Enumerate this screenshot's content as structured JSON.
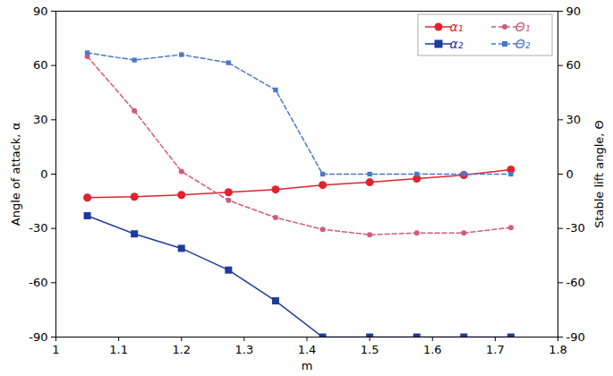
{
  "chart_data": {
    "type": "line",
    "x_label": "m",
    "y_label": "Angle of attack, α",
    "y2_label": "Stable lift angle, Θ",
    "x": [
      1.05,
      1.125,
      1.2,
      1.275,
      1.35,
      1.425,
      1.5,
      1.575,
      1.65,
      1.725
    ],
    "xlim": [
      1,
      1.8
    ],
    "xticks": [
      1,
      1.1,
      1.2,
      1.3,
      1.4,
      1.5,
      1.6,
      1.7,
      1.8
    ],
    "ylim": [
      -90,
      90
    ],
    "yticks": [
      -90,
      -60,
      -30,
      0,
      30,
      60,
      90
    ],
    "y2lim": [
      -90,
      90
    ],
    "y2ticks": [
      -90,
      -60,
      -30,
      0,
      30,
      60,
      90
    ],
    "legend": "top-right",
    "series": [
      {
        "name": "α₁",
        "color": "#e2222e",
        "marker": "circle",
        "line_style": "solid",
        "values": [
          -13,
          -12.5,
          -11.5,
          -10,
          -8.5,
          -6,
          -4.5,
          -2.5,
          -0.5,
          2.5
        ]
      },
      {
        "name": "Θ₁",
        "color": "#d05a80",
        "marker": "circle",
        "line_style": "dashed",
        "axis": "y2",
        "values": [
          65,
          35,
          1.5,
          -14.5,
          -24,
          -30.5,
          -33.5,
          -32.5,
          -32.5,
          -29.5
        ]
      },
      {
        "name": "α₂",
        "color": "#1f3a9c",
        "marker": "square",
        "line_style": "solid",
        "values": [
          -23,
          -33,
          -41,
          -53,
          -70,
          -90,
          -90,
          -90,
          -90,
          -90
        ]
      },
      {
        "name": "Θ₂",
        "color": "#4a78c8",
        "marker": "square",
        "line_style": "dashed",
        "axis": "y2",
        "values": [
          67,
          63,
          66,
          61.5,
          46.5,
          0,
          0,
          0,
          0,
          0
        ]
      }
    ]
  }
}
